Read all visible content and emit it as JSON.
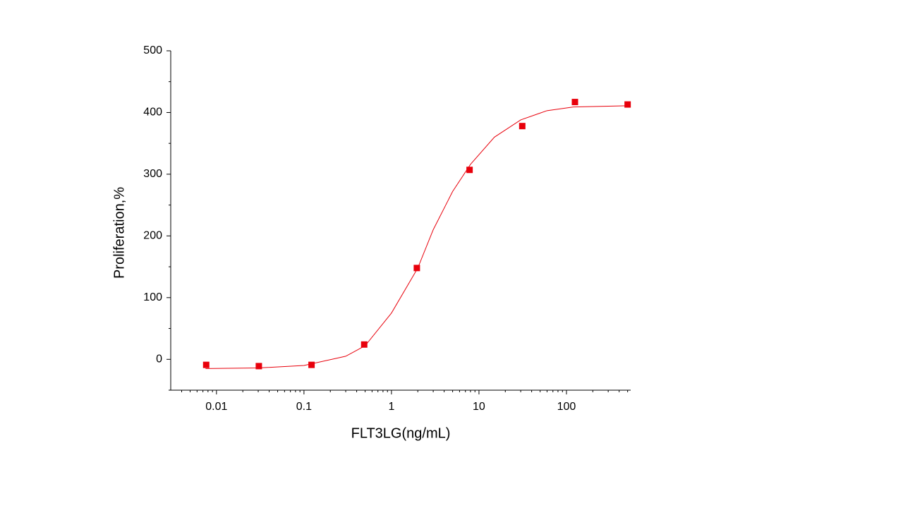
{
  "chart_data": {
    "type": "scatter",
    "x_label": "FLT3LG(ng/mL)",
    "y_label": "Proliferation,%",
    "x_scale": "log",
    "xlim": [
      0.003,
      542
    ],
    "ylim": [
      -50,
      500
    ],
    "xticks": [
      0.01,
      0.1,
      1,
      10,
      100
    ],
    "xminorticks": [
      0.004,
      0.005,
      0.006,
      0.007,
      0.008,
      0.009,
      0.02,
      0.03,
      0.04,
      0.05,
      0.06,
      0.07,
      0.08,
      0.09,
      0.2,
      0.3,
      0.4,
      0.5,
      0.6,
      0.7,
      0.8,
      0.9,
      2,
      3,
      4,
      5,
      6,
      7,
      8,
      9,
      20,
      30,
      40,
      50,
      60,
      70,
      80,
      90,
      200,
      300,
      400,
      500
    ],
    "yticks": [
      0,
      100,
      200,
      300,
      400,
      500
    ],
    "yminorticks": [
      -50,
      50,
      150,
      250,
      350,
      450
    ],
    "color": "#e8000b",
    "x": [
      0.00763,
      0.0305,
      0.122,
      0.488,
      1.95,
      7.81,
      31.25,
      125,
      500
    ],
    "values": [
      -9,
      -11,
      -9,
      24,
      148,
      307,
      378,
      417,
      413
    ],
    "fit": {
      "type": "line",
      "color": "#e8000b",
      "x": [
        0.0075,
        0.03,
        0.1,
        0.3,
        0.5,
        1,
        2,
        3,
        5,
        8,
        15,
        30,
        60,
        120,
        500
      ],
      "values": [
        -15,
        -14,
        -10,
        5,
        22,
        75,
        148,
        210,
        272,
        316,
        360,
        388,
        403,
        409,
        411
      ]
    }
  }
}
